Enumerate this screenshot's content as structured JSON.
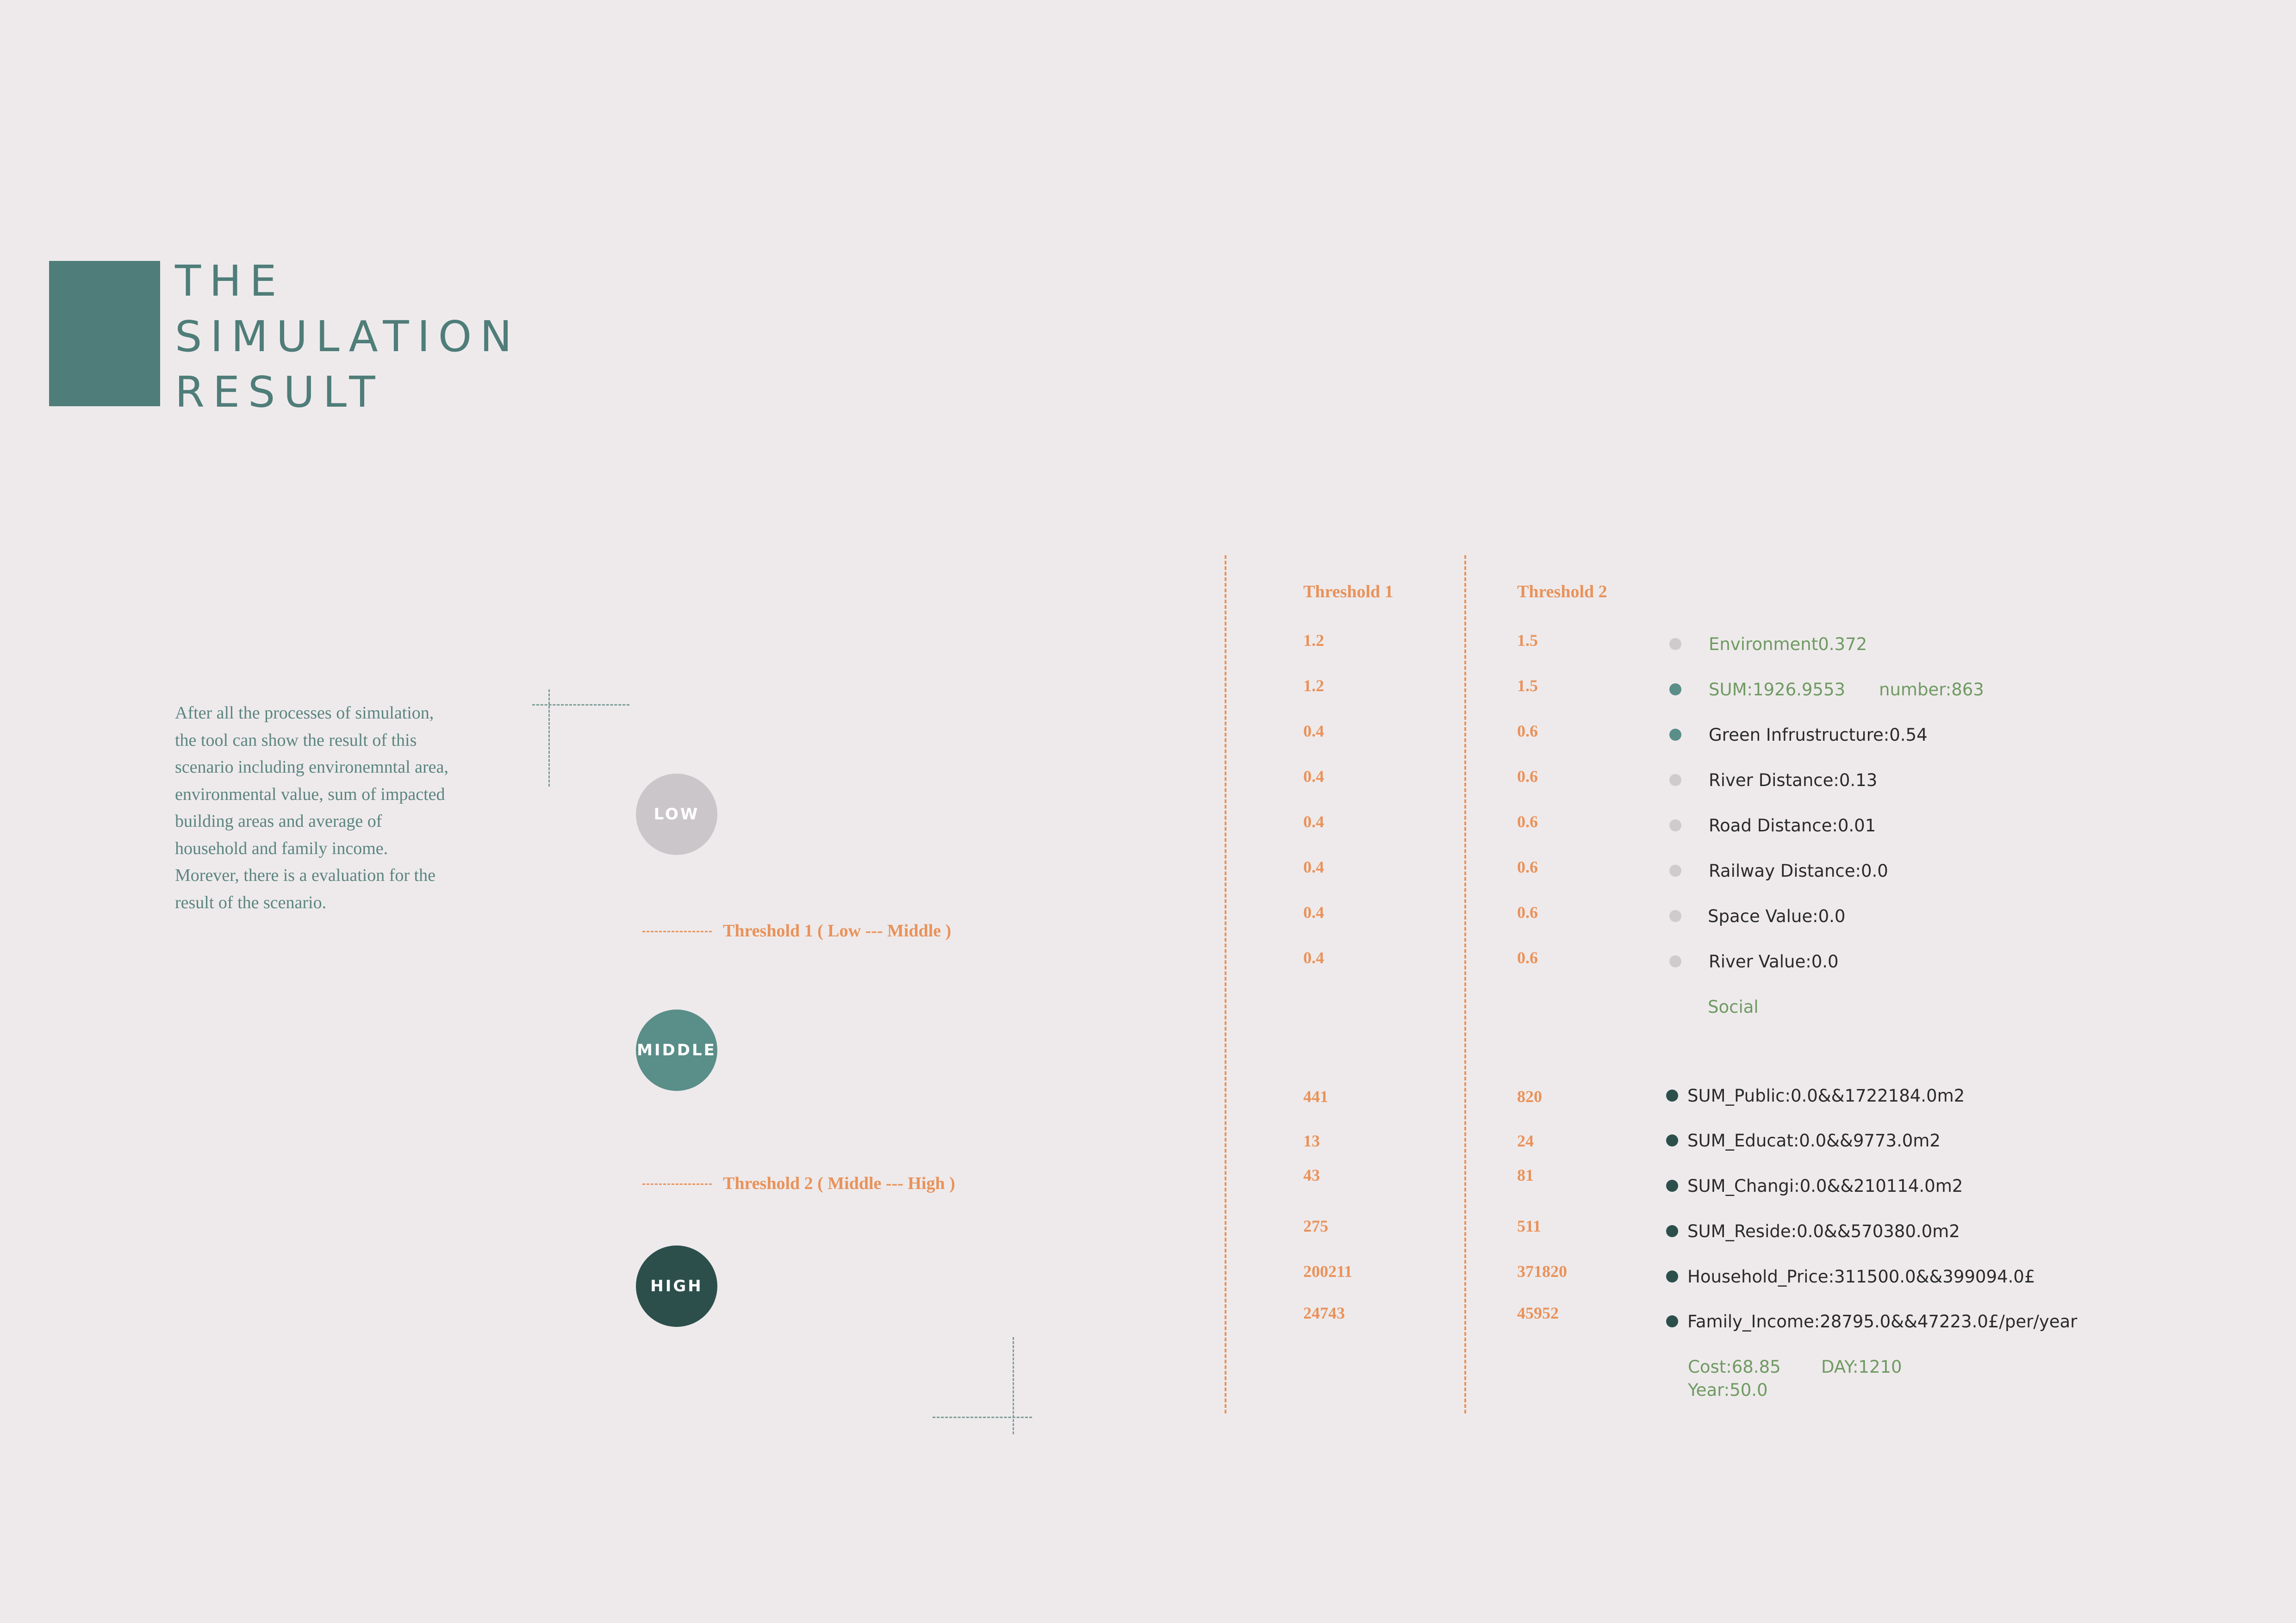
{
  "title": {
    "line1": "THE",
    "line2": "SIMULATION",
    "line3": "RESULT"
  },
  "colors": {
    "teal": "#4f7d79",
    "orange": "#e9925a",
    "low": "#cbc6c9",
    "middle": "#5a8e89",
    "high": "#2c4f4c",
    "background": "#eeeaeb",
    "green_text": "#6f9a62"
  },
  "description": "After all the processes of simulation, the tool can show the result of this scenario including environemntal area, environmental value, sum of impacted building areas and average of household and family income. Morever, there is a evaluation for the result of the scenario.",
  "levels": {
    "low": "LOW",
    "middle": "MIDDLE",
    "high": "HIGH"
  },
  "thresholds": {
    "t1_label": "Threshold 1 ( Low --- Middle )",
    "t2_label": "Threshold 2 ( Middle --- High )"
  },
  "table": {
    "headers": [
      "Threshold 1",
      "Threshold 2"
    ],
    "environment_rows": [
      {
        "t1": "1.2",
        "t2": "1.5",
        "indicator": "Environment0.372",
        "dot": "light"
      },
      {
        "t1": "1.2",
        "t2": "1.5",
        "indicator": "SUM:1926.9553",
        "extra": "number:863",
        "dot": "teal"
      },
      {
        "t1": "0.4",
        "t2": "0.6",
        "indicator": "Green Infrustructure:0.54",
        "dot": "teal"
      },
      {
        "t1": "0.4",
        "t2": "0.6",
        "indicator": "River Distance:0.13",
        "dot": "light"
      },
      {
        "t1": "0.4",
        "t2": "0.6",
        "indicator": "Road Distance:0.01",
        "dot": "light"
      },
      {
        "t1": "0.4",
        "t2": "0.6",
        "indicator": "Railway Distance:0.0",
        "dot": "light"
      },
      {
        "t1": "0.4",
        "t2": "0.6",
        "indicator": "Space Value:0.0",
        "dot": "light"
      },
      {
        "t1": "0.4",
        "t2": "0.6",
        "indicator": "River Value:0.0",
        "dot": "light"
      }
    ],
    "social_label": "Social",
    "social_rows": [
      {
        "t1": "441",
        "t2": "820",
        "indicator": "SUM_Public:0.0&&1722184.0m2"
      },
      {
        "t1": "13",
        "t2": "24",
        "indicator": "SUM_Educat:0.0&&9773.0m2"
      },
      {
        "t1": "43",
        "t2": "81",
        "indicator": "SUM_Changi:0.0&&210114.0m2"
      },
      {
        "t1": "275",
        "t2": "511",
        "indicator": "SUM_Reside:0.0&&570380.0m2"
      },
      {
        "t1": "200211",
        "t2": "371820",
        "indicator": "Household_Price:311500.0&&399094.0£"
      },
      {
        "t1": "24743",
        "t2": "45952",
        "indicator": "Family_Income:28795.0&&47223.0£/per/year"
      }
    ],
    "footer": {
      "cost": "Cost:68.85",
      "day": "DAY:1210",
      "year": "Year:50.0"
    }
  }
}
